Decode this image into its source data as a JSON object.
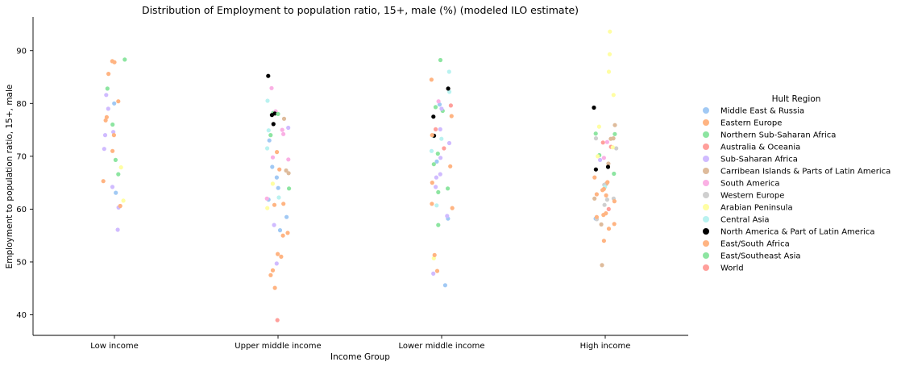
{
  "chart_data": {
    "type": "scatter",
    "title": "Distribution of Employment to population ratio, 15+, male (%) (modeled ILO estimate)",
    "xlabel": "Income Group",
    "ylabel": "Employment to population ratio, 15+, male",
    "categories": [
      "Low income",
      "Upper middle income",
      "Lower middle income",
      "High income"
    ],
    "ylim": [
      36,
      96
    ],
    "yticks": [
      40,
      50,
      60,
      70,
      80,
      90
    ],
    "grid": false,
    "legend_title": "Hult Region",
    "legend_position": "right",
    "series": [
      {
        "name": "Middle East & Russia",
        "color": "#a1c9f4",
        "points": [
          {
            "x": "Low income",
            "y": 80.0
          },
          {
            "x": "Low income",
            "y": 63.1
          },
          {
            "x": "Upper middle income",
            "y": 73.0
          },
          {
            "x": "Upper middle income",
            "y": 68.0
          },
          {
            "x": "Upper middle income",
            "y": 66.0
          },
          {
            "x": "Upper middle income",
            "y": 64.0
          },
          {
            "x": "Upper middle income",
            "y": 61.8
          },
          {
            "x": "Upper middle income",
            "y": 58.5
          },
          {
            "x": "Upper middle income",
            "y": 56.0
          },
          {
            "x": "Lower middle income",
            "y": 79.8
          },
          {
            "x": "Lower middle income",
            "y": 69.0
          },
          {
            "x": "Lower middle income",
            "y": 58.2
          },
          {
            "x": "Lower middle income",
            "y": 45.6
          },
          {
            "x": "High income",
            "y": 58.2
          }
        ]
      },
      {
        "name": "Eastern Europe",
        "color": "#ffb482",
        "points": [
          {
            "x": "Low income",
            "y": 87.8
          },
          {
            "x": "Low income",
            "y": 85.6
          },
          {
            "x": "Low income",
            "y": 80.4
          },
          {
            "x": "Low income",
            "y": 77.4
          },
          {
            "x": "Upper middle income",
            "y": 67.5
          },
          {
            "x": "Upper middle income",
            "y": 51.5
          },
          {
            "x": "Upper middle income",
            "y": 47.5
          },
          {
            "x": "Lower middle income",
            "y": 84.5
          },
          {
            "x": "Lower middle income",
            "y": 77.6
          },
          {
            "x": "Lower middle income",
            "y": 60.2
          },
          {
            "x": "High income",
            "y": 62.8
          },
          {
            "x": "High income",
            "y": 54.0
          }
        ]
      },
      {
        "name": "Northern Sub-Saharan Africa",
        "color": "#8de5a1",
        "points": [
          {
            "x": "Low income",
            "y": 88.3
          },
          {
            "x": "Low income",
            "y": 82.8
          },
          {
            "x": "Low income",
            "y": 76.0
          },
          {
            "x": "Low income",
            "y": 69.3
          },
          {
            "x": "Low income",
            "y": 66.6
          },
          {
            "x": "Upper middle income",
            "y": 78.2
          },
          {
            "x": "Upper middle income",
            "y": 74.0
          },
          {
            "x": "Upper middle income",
            "y": 63.9
          },
          {
            "x": "Lower middle income",
            "y": 88.2
          },
          {
            "x": "Lower middle income",
            "y": 79.3
          },
          {
            "x": "Lower middle income",
            "y": 78.6
          },
          {
            "x": "Lower middle income",
            "y": 70.5
          },
          {
            "x": "Lower middle income",
            "y": 68.5
          },
          {
            "x": "Lower middle income",
            "y": 63.9
          },
          {
            "x": "Lower middle income",
            "y": 63.2
          },
          {
            "x": "Lower middle income",
            "y": 57.0
          },
          {
            "x": "High income",
            "y": 74.3
          },
          {
            "x": "High income",
            "y": 74.2
          },
          {
            "x": "High income",
            "y": 70.2
          },
          {
            "x": "High income",
            "y": 66.7
          }
        ]
      },
      {
        "name": "Australia & Oceania",
        "color": "#ff9f9b",
        "points": [
          {
            "x": "Upper middle income",
            "y": 39.0
          },
          {
            "x": "Lower middle income",
            "y": 75.1
          },
          {
            "x": "Lower middle income",
            "y": 71.5
          },
          {
            "x": "High income",
            "y": 72.6
          },
          {
            "x": "High income",
            "y": 71.8
          },
          {
            "x": "High income",
            "y": 60.0
          }
        ]
      },
      {
        "name": "Sub-Saharan Africa",
        "color": "#d0bbff",
        "points": [
          {
            "x": "Low income",
            "y": 81.6
          },
          {
            "x": "Low income",
            "y": 79.0
          },
          {
            "x": "Low income",
            "y": 74.6
          },
          {
            "x": "Low income",
            "y": 74.0
          },
          {
            "x": "Low income",
            "y": 71.4
          },
          {
            "x": "Low income",
            "y": 64.2
          },
          {
            "x": "Low income",
            "y": 60.3
          },
          {
            "x": "Low income",
            "y": 56.1
          },
          {
            "x": "Upper middle income",
            "y": 75.4
          },
          {
            "x": "Upper middle income",
            "y": 57.0
          },
          {
            "x": "Upper middle income",
            "y": 49.7
          },
          {
            "x": "Lower middle income",
            "y": 79.0
          },
          {
            "x": "Lower middle income",
            "y": 75.1
          },
          {
            "x": "Lower middle income",
            "y": 72.5
          },
          {
            "x": "Lower middle income",
            "y": 69.7
          },
          {
            "x": "Lower middle income",
            "y": 66.6
          },
          {
            "x": "Lower middle income",
            "y": 66.0
          },
          {
            "x": "Lower middle income",
            "y": 64.2
          },
          {
            "x": "Lower middle income",
            "y": 58.7
          },
          {
            "x": "Lower middle income",
            "y": 47.8
          },
          {
            "x": "High income",
            "y": 69.3
          }
        ]
      },
      {
        "name": "Carribean Islands & Parts of Latin America",
        "color": "#debb9b",
        "points": [
          {
            "x": "Upper middle income",
            "y": 77.1
          },
          {
            "x": "Upper middle income",
            "y": 67.3
          },
          {
            "x": "Upper middle income",
            "y": 66.8
          },
          {
            "x": "High income",
            "y": 75.9
          },
          {
            "x": "High income",
            "y": 73.4
          },
          {
            "x": "High income",
            "y": 73.3
          },
          {
            "x": "High income",
            "y": 68.6
          },
          {
            "x": "High income",
            "y": 64.8
          },
          {
            "x": "High income",
            "y": 62.0
          },
          {
            "x": "High income",
            "y": 57.1
          },
          {
            "x": "High income",
            "y": 49.4
          }
        ]
      },
      {
        "name": "South America",
        "color": "#fab0e4",
        "points": [
          {
            "x": "Upper middle income",
            "y": 82.9
          },
          {
            "x": "Upper middle income",
            "y": 78.5
          },
          {
            "x": "Upper middle income",
            "y": 75.0
          },
          {
            "x": "Upper middle income",
            "y": 74.2
          },
          {
            "x": "Upper middle income",
            "y": 69.8
          },
          {
            "x": "Upper middle income",
            "y": 69.4
          },
          {
            "x": "Upper middle income",
            "y": 62.0
          },
          {
            "x": "Lower middle income",
            "y": 80.4
          },
          {
            "x": "High income",
            "y": 72.7
          },
          {
            "x": "High income",
            "y": 69.7
          }
        ]
      },
      {
        "name": "Western Europe",
        "color": "#cfcfcf",
        "points": [
          {
            "x": "High income",
            "y": 73.4
          },
          {
            "x": "High income",
            "y": 71.5
          },
          {
            "x": "High income",
            "y": 64.6
          },
          {
            "x": "High income",
            "y": 62.0
          },
          {
            "x": "High income",
            "y": 61.8
          },
          {
            "x": "High income",
            "y": 60.8
          },
          {
            "x": "High income",
            "y": 58.1
          }
        ]
      },
      {
        "name": "Arabian Peninsula",
        "color": "#fffea3",
        "points": [
          {
            "x": "Low income",
            "y": 67.9
          },
          {
            "x": "Low income",
            "y": 61.6
          },
          {
            "x": "Upper middle income",
            "y": 64.8
          },
          {
            "x": "Upper middle income",
            "y": 60.2
          },
          {
            "x": "Lower middle income",
            "y": 50.7
          },
          {
            "x": "High income",
            "y": 93.6
          },
          {
            "x": "High income",
            "y": 89.3
          },
          {
            "x": "High income",
            "y": 86.0
          },
          {
            "x": "High income",
            "y": 81.6
          },
          {
            "x": "High income",
            "y": 75.6
          },
          {
            "x": "High income",
            "y": 71.7
          },
          {
            "x": "High income",
            "y": 70.0
          }
        ]
      },
      {
        "name": "Central Asia",
        "color": "#b9f2f0",
        "points": [
          {
            "x": "Upper middle income",
            "y": 80.5
          },
          {
            "x": "Upper middle income",
            "y": 74.9
          },
          {
            "x": "Upper middle income",
            "y": 71.5
          },
          {
            "x": "Upper middle income",
            "y": 62.2
          },
          {
            "x": "Lower middle income",
            "y": 86.0
          },
          {
            "x": "Lower middle income",
            "y": 82.2
          },
          {
            "x": "Lower middle income",
            "y": 73.8
          },
          {
            "x": "Lower middle income",
            "y": 73.3
          },
          {
            "x": "Lower middle income",
            "y": 71.0
          },
          {
            "x": "Lower middle income",
            "y": 60.7
          },
          {
            "x": "High income",
            "y": 64.2
          }
        ]
      },
      {
        "name": "North America & Part of Latin America",
        "color": "#000000",
        "points": [
          {
            "x": "Upper middle income",
            "y": 85.2
          },
          {
            "x": "Upper middle income",
            "y": 78.1
          },
          {
            "x": "Upper middle income",
            "y": 77.8
          },
          {
            "x": "Upper middle income",
            "y": 76.1
          },
          {
            "x": "Lower middle income",
            "y": 82.8
          },
          {
            "x": "Lower middle income",
            "y": 77.5
          },
          {
            "x": "Lower middle income",
            "y": 73.9
          },
          {
            "x": "High income",
            "y": 79.2
          },
          {
            "x": "High income",
            "y": 68.0
          },
          {
            "x": "High income",
            "y": 67.5
          }
        ]
      },
      {
        "name": "East/South Africa",
        "color": "#ffb482",
        "points": [
          {
            "x": "Low income",
            "y": 88.0
          },
          {
            "x": "Low income",
            "y": 76.8
          },
          {
            "x": "Low income",
            "y": 74.0
          },
          {
            "x": "Low income",
            "y": 71.0
          },
          {
            "x": "Low income",
            "y": 65.3
          },
          {
            "x": "Low income",
            "y": 60.6
          },
          {
            "x": "Upper middle income",
            "y": 70.8
          },
          {
            "x": "Upper middle income",
            "y": 61.0
          },
          {
            "x": "Upper middle income",
            "y": 60.8
          },
          {
            "x": "Upper middle income",
            "y": 55.5
          },
          {
            "x": "Upper middle income",
            "y": 55.0
          },
          {
            "x": "Upper middle income",
            "y": 51.0
          },
          {
            "x": "Upper middle income",
            "y": 48.4
          },
          {
            "x": "Upper middle income",
            "y": 45.1
          },
          {
            "x": "Lower middle income",
            "y": 74.0
          },
          {
            "x": "Lower middle income",
            "y": 68.1
          },
          {
            "x": "Lower middle income",
            "y": 65.0
          },
          {
            "x": "Lower middle income",
            "y": 61.0
          },
          {
            "x": "Lower middle income",
            "y": 51.3
          },
          {
            "x": "Lower middle income",
            "y": 48.3
          },
          {
            "x": "High income",
            "y": 66.0
          },
          {
            "x": "High income",
            "y": 65.1
          },
          {
            "x": "High income",
            "y": 63.8
          },
          {
            "x": "High income",
            "y": 63.6
          },
          {
            "x": "High income",
            "y": 62.6
          },
          {
            "x": "High income",
            "y": 61.5
          },
          {
            "x": "High income",
            "y": 59.2
          },
          {
            "x": "High income",
            "y": 58.9
          },
          {
            "x": "High income",
            "y": 58.5
          },
          {
            "x": "High income",
            "y": 57.2
          },
          {
            "x": "High income",
            "y": 56.3
          }
        ]
      },
      {
        "name": "East/Southeast Asia",
        "color": "#8de5a1",
        "points": [
          {
            "x": "Upper middle income",
            "y": 78.0
          }
        ]
      },
      {
        "name": "World",
        "color": "#ff9f9b",
        "points": [
          {
            "x": "Lower middle income",
            "y": 79.6
          }
        ]
      }
    ]
  }
}
